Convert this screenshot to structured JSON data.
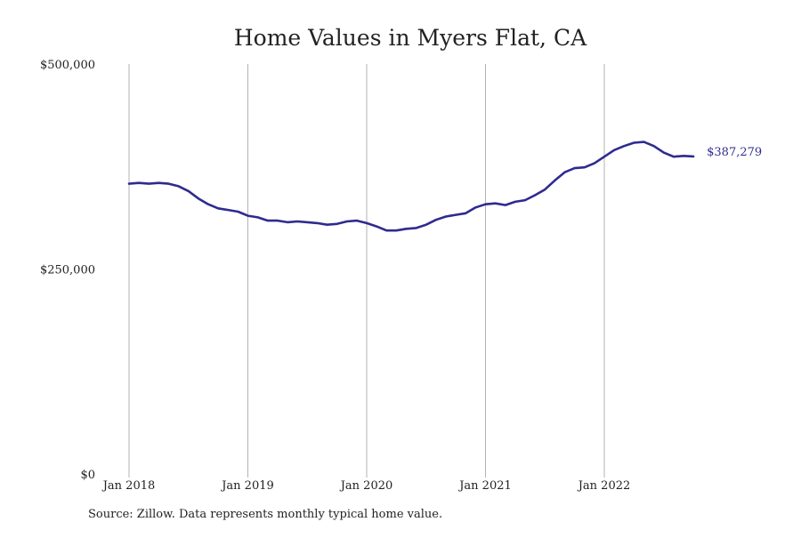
{
  "chart_data": {
    "type": "line",
    "title": "Home Values in Myers Flat, CA",
    "xlabel": "",
    "ylabel": "",
    "ylim": [
      0,
      500000
    ],
    "y_ticks": [
      {
        "value": 0,
        "label": "$0"
      },
      {
        "value": 250000,
        "label": "$250,000"
      },
      {
        "value": 500000,
        "label": "$500,000"
      }
    ],
    "x_ticks": [
      {
        "value": "2018-01",
        "label": "Jan 2018"
      },
      {
        "value": "2019-01",
        "label": "Jan 2019"
      },
      {
        "value": "2020-01",
        "label": "Jan 2020"
      },
      {
        "value": "2021-01",
        "label": "Jan 2021"
      },
      {
        "value": "2022-01",
        "label": "Jan 2022"
      }
    ],
    "grid": {
      "vertical": true,
      "horizontal": false
    },
    "legend": "none",
    "line_color": "#2e2b8f",
    "end_label": "$387,279",
    "series": [
      {
        "x": [
          "2018-01",
          "2018-02",
          "2018-03",
          "2018-04",
          "2018-05",
          "2018-06",
          "2018-07",
          "2018-08",
          "2018-09",
          "2018-10",
          "2018-11",
          "2018-12",
          "2019-01",
          "2019-02",
          "2019-03",
          "2019-04",
          "2019-05",
          "2019-06",
          "2019-07",
          "2019-08",
          "2019-09",
          "2019-10",
          "2019-11",
          "2019-12",
          "2020-01",
          "2020-02",
          "2020-03",
          "2020-04",
          "2020-05",
          "2020-06",
          "2020-07",
          "2020-08",
          "2020-09",
          "2020-10",
          "2020-11",
          "2020-12",
          "2021-01",
          "2021-02",
          "2021-03",
          "2021-04",
          "2021-05",
          "2021-06",
          "2021-07",
          "2021-08",
          "2021-09",
          "2021-10",
          "2021-11",
          "2021-12",
          "2022-01",
          "2022-02",
          "2022-03",
          "2022-04",
          "2022-05",
          "2022-06",
          "2022-07",
          "2022-08",
          "2022-09",
          "2022-10"
        ],
        "values": [
          354000,
          355000,
          354000,
          355000,
          354000,
          351000,
          345000,
          336000,
          329000,
          324000,
          322000,
          320000,
          315000,
          313000,
          309000,
          309000,
          307000,
          308000,
          307000,
          306000,
          304000,
          305000,
          308000,
          309000,
          306000,
          302000,
          297000,
          297000,
          299000,
          300000,
          304000,
          310000,
          314000,
          316000,
          318000,
          325000,
          329000,
          330000,
          328000,
          332000,
          334000,
          340000,
          347000,
          358000,
          368000,
          373000,
          374000,
          379000,
          387000,
          395000,
          400000,
          404000,
          405000,
          400000,
          392000,
          387000,
          388000,
          387279
        ]
      }
    ]
  },
  "source_note": "Source: Zillow. Data represents monthly typical home value."
}
